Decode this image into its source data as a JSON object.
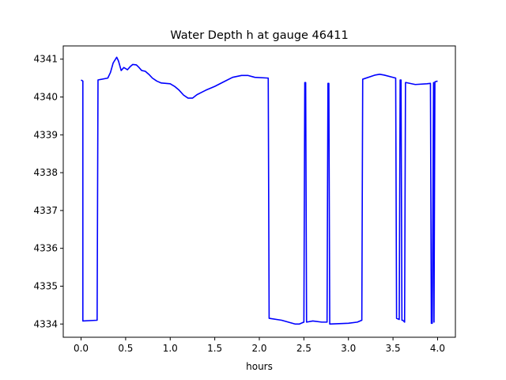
{
  "chart_data": {
    "type": "line",
    "title": "Water Depth h at gauge 46411",
    "xlabel": "hours",
    "ylabel": "",
    "xlim": [
      -0.2,
      4.2
    ],
    "ylim": [
      4333.65,
      4341.35
    ],
    "xticks": [
      0.0,
      0.5,
      1.0,
      1.5,
      2.0,
      2.5,
      3.0,
      3.5,
      4.0
    ],
    "xtick_labels": [
      "0.0",
      "0.5",
      "1.0",
      "1.5",
      "2.0",
      "2.5",
      "3.0",
      "3.5",
      "4.0"
    ],
    "yticks": [
      4334,
      4335,
      4336,
      4337,
      4338,
      4339,
      4340,
      4341
    ],
    "ytick_labels": [
      "4334",
      "4335",
      "4336",
      "4337",
      "4338",
      "4339",
      "4340",
      "4341"
    ],
    "grid": false,
    "series": [
      {
        "color": "#0000ff",
        "x": [
          0.0,
          0.02,
          0.02,
          0.18,
          0.19,
          0.3,
          0.33,
          0.36,
          0.4,
          0.42,
          0.45,
          0.48,
          0.52,
          0.55,
          0.58,
          0.62,
          0.65,
          0.68,
          0.72,
          0.76,
          0.8,
          0.85,
          0.9,
          1.0,
          1.05,
          1.1,
          1.15,
          1.2,
          1.25,
          1.3,
          1.4,
          1.5,
          1.6,
          1.7,
          1.8,
          1.87,
          1.95,
          2.1,
          2.11,
          2.25,
          2.4,
          2.45,
          2.5,
          2.51,
          2.52,
          2.53,
          2.6,
          2.7,
          2.76,
          2.77,
          2.78,
          2.79,
          3.0,
          3.1,
          3.15,
          3.16,
          3.3,
          3.35,
          3.4,
          3.53,
          3.54,
          3.57,
          3.58,
          3.59,
          3.6,
          3.61,
          3.63,
          3.64,
          3.65,
          3.75,
          3.88,
          3.92,
          3.93,
          3.94,
          3.955,
          3.96,
          3.97,
          4.0
        ],
        "values": [
          4340.45,
          4340.42,
          4334.08,
          4334.1,
          4340.45,
          4340.5,
          4340.65,
          4340.9,
          4341.05,
          4340.95,
          4340.7,
          4340.78,
          4340.72,
          4340.8,
          4340.86,
          4340.85,
          4340.78,
          4340.7,
          4340.68,
          4340.6,
          4340.5,
          4340.42,
          4340.37,
          4340.35,
          4340.28,
          4340.18,
          4340.05,
          4339.97,
          4339.97,
          4340.06,
          4340.18,
          4340.28,
          4340.4,
          4340.52,
          4340.57,
          4340.57,
          4340.52,
          4340.5,
          4334.15,
          4334.1,
          4334.0,
          4334.0,
          4334.05,
          4340.38,
          4340.38,
          4334.05,
          4334.08,
          4334.05,
          4334.05,
          4340.36,
          4340.36,
          4334.0,
          4334.02,
          4334.05,
          4334.1,
          4340.47,
          4340.58,
          4340.6,
          4340.58,
          4340.5,
          4334.15,
          4334.12,
          4340.45,
          4340.45,
          4334.1,
          4334.1,
          4334.05,
          4340.38,
          4340.38,
          4340.33,
          4340.35,
          4340.36,
          4334.02,
          4334.02,
          4340.38,
          4334.05,
          4340.4,
          4340.42
        ]
      }
    ]
  }
}
